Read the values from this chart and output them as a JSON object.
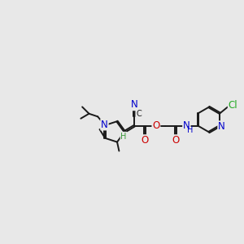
{
  "background_color": "#e8e8e8",
  "figsize": [
    3.0,
    3.0
  ],
  "dpi": 100,
  "bond_color": "#1a1a1a",
  "bond_width": 1.4,
  "atom_colors": {
    "N": "#0000cc",
    "O": "#cc0000",
    "Cl": "#22aa22",
    "H": "#3a9a3a"
  },
  "font_size": 8.5,
  "font_size_small": 7.0,
  "xlim": [
    0,
    10
  ],
  "ylim": [
    2.5,
    7.5
  ]
}
